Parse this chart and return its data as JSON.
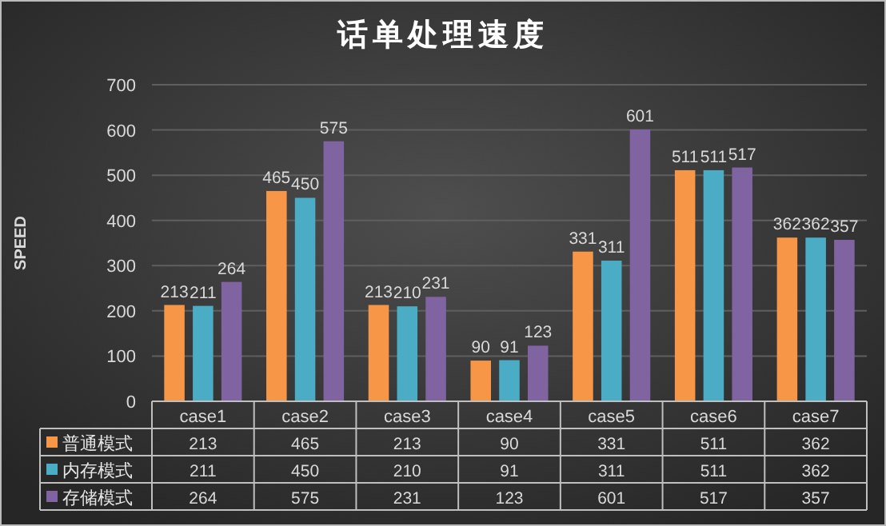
{
  "chart_data": {
    "type": "bar",
    "title": "话单处理速度",
    "ylabel": "SPEED",
    "categories": [
      "case1",
      "case2",
      "case3",
      "case4",
      "case5",
      "case6",
      "case7"
    ],
    "series": [
      {
        "name": "普通模式",
        "color": "#f79646",
        "values": [
          213,
          465,
          213,
          90,
          331,
          511,
          362
        ],
        "value_labels": [
          "213",
          "465",
          "213",
          "90",
          "331",
          "511",
          "362"
        ]
      },
      {
        "name": "内存模式",
        "color": "#4bacc6",
        "values": [
          211,
          450,
          210,
          91,
          311,
          511,
          362
        ],
        "value_labels": [
          "211",
          "450",
          "210",
          "91",
          "311",
          "511",
          "362"
        ]
      },
      {
        "name": "存储模式",
        "color": "#8064a2",
        "values": [
          264,
          575,
          231,
          123,
          601,
          517,
          357
        ],
        "value_labels": [
          "264",
          "575",
          "231",
          "123",
          "601",
          "517",
          "357"
        ]
      }
    ],
    "annotations": [
      "213",
      "465",
      "213",
      "90",
      "331",
      "511",
      "362",
      "211",
      "450",
      "210",
      "91",
      "311",
      "511",
      "362",
      "264",
      "575",
      "231",
      "123",
      "601",
      "517",
      "357"
    ],
    "ylim": [
      0,
      700
    ],
    "yticks": [
      0,
      100,
      200,
      300,
      400,
      500,
      600,
      700
    ],
    "grid": "y",
    "legend": "bottom"
  }
}
